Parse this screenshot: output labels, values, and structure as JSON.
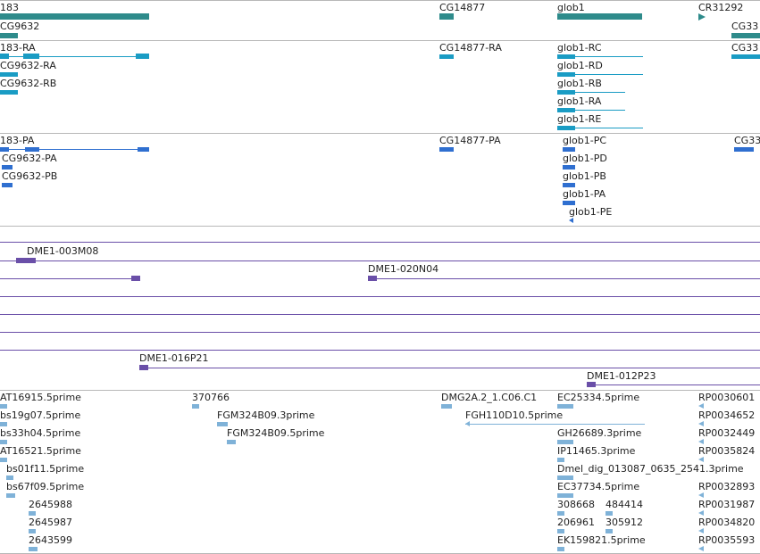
{
  "colors": {
    "gene": "#2e8b8b",
    "transcript": "#1a9cc4",
    "protein": "#2f6fd0",
    "clone": "#6a4fa8",
    "est": "#7fb2d8",
    "divider": "#b8b8b8",
    "text": "#222222"
  },
  "tracks": {
    "genes": {
      "labels": [
        "183",
        "CG9632",
        "CG14877",
        "glob1",
        "CR31292",
        "CG33"
      ]
    },
    "transcripts": {
      "labels": [
        "183-RA",
        "CG9632-RA",
        "CG9632-RB",
        "CG14877-RA",
        "glob1-RC",
        "glob1-RD",
        "glob1-RB",
        "glob1-RA",
        "glob1-RE",
        "CG33"
      ]
    },
    "proteins": {
      "labels": [
        "183-PA",
        "CG9632-PA",
        "CG9632-PB",
        "CG14877-PA",
        "glob1-PC",
        "glob1-PD",
        "glob1-PB",
        "glob1-PA",
        "glob1-PE",
        "CG33"
      ]
    },
    "clones": {
      "labels": [
        "DME1-003M08",
        "DME1-020N04",
        "DME1-016P21",
        "DME1-012P23"
      ]
    },
    "ests": {
      "labels": [
        "AT16915.5prime",
        "bs19g07.5prime",
        "bs33h04.5prime",
        "AT16521.5prime",
        "bs01f11.5prime",
        "bs67f09.5prime",
        "2645988",
        "2645987",
        "2643599",
        "370766",
        "FGM324B09.3prime",
        "FGM324B09.5prime",
        "DMG2A.2_1.C06.C1",
        "FGH110D10.5prime",
        "EC25334.5prime",
        "GH26689.3prime",
        "IP11465.3prime",
        "Dmel_dig_013087_0635_2541.3prime",
        "EC37734.5prime",
        "308668",
        "484414",
        "206961",
        "305912",
        "EK159821.5prime",
        "RP0030601",
        "RP0034652",
        "RP0032449",
        "RP0035824",
        "RP0032893",
        "RP0031987",
        "RP0034820",
        "RP0035593"
      ]
    }
  }
}
